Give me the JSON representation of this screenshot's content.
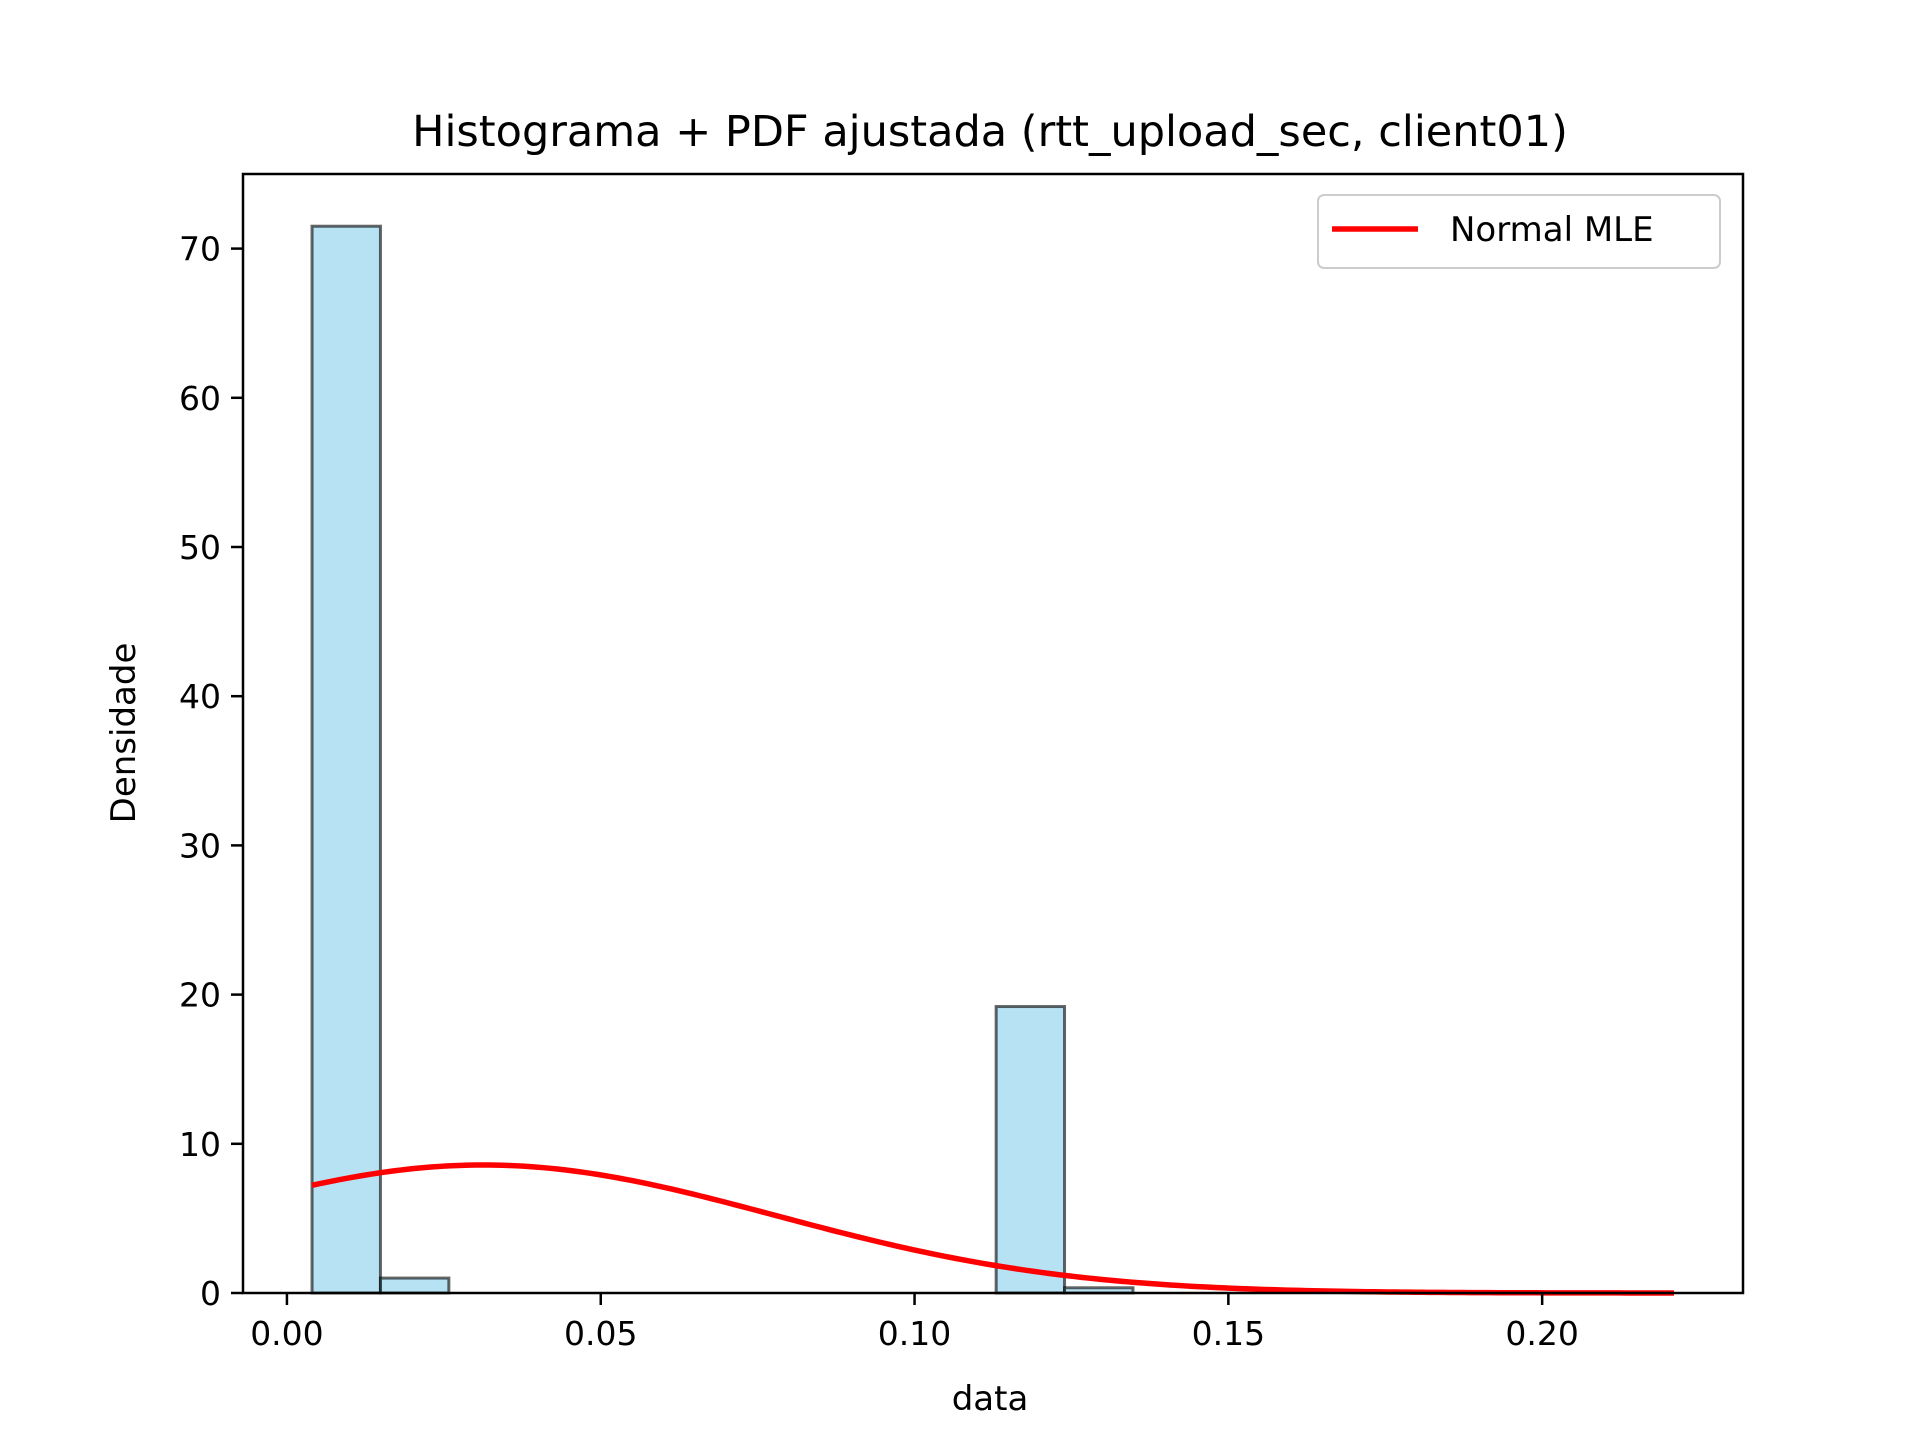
{
  "chart_data": {
    "type": "histogram",
    "title": "Histograma + PDF ajustada (rtt_upload_sec, client01)",
    "xlabel": "data",
    "ylabel": "Densidade",
    "xlim": [
      -0.007,
      0.232
    ],
    "ylim": [
      0,
      75
    ],
    "x_ticks": [
      0.0,
      0.05,
      0.1,
      0.15,
      0.2
    ],
    "x_tick_labels": [
      "0.00",
      "0.05",
      "0.10",
      "0.15",
      "0.20"
    ],
    "y_ticks": [
      0,
      10,
      20,
      30,
      40,
      50,
      60,
      70
    ],
    "y_tick_labels": [
      "0",
      "10",
      "20",
      "30",
      "40",
      "50",
      "60",
      "70"
    ],
    "histogram": {
      "bin_edges": [
        0.004,
        0.0149,
        0.0258,
        0.0367,
        0.0476,
        0.0585,
        0.0694,
        0.0803,
        0.0912,
        0.1021,
        0.113,
        0.1239,
        0.1348
      ],
      "densities": [
        71.5,
        1.0,
        0,
        0,
        0,
        0,
        0,
        0,
        0,
        0,
        19.2,
        0.35
      ],
      "fill_color": "#87ceeb",
      "edge_color": "#000000"
    },
    "series": [
      {
        "name": "Normal MLE",
        "kind": "pdf-curve",
        "color": "#ff0000",
        "x_range": [
          0.004,
          0.221
        ],
        "mean": 0.0313,
        "std": 0.0465
      }
    ],
    "legend": {
      "position": "top-right",
      "entries": [
        "Normal MLE"
      ]
    }
  }
}
